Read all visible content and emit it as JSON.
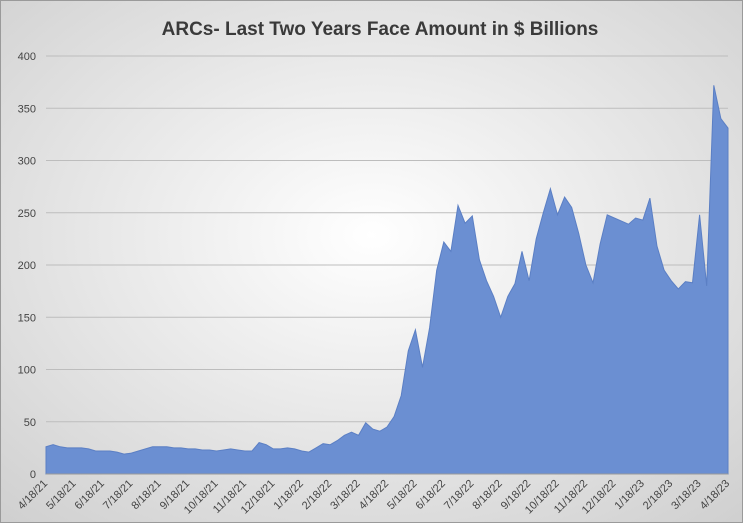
{
  "chart_data": {
    "type": "area",
    "title": "ARCs- Last Two Years Face Amount in $ Billions",
    "categories": [
      "4/18/21",
      null,
      null,
      null,
      "5/18/21",
      null,
      null,
      null,
      "6/18/21",
      null,
      null,
      null,
      "7/18/21",
      null,
      null,
      null,
      "8/18/21",
      null,
      null,
      null,
      "9/18/21",
      null,
      null,
      null,
      "10/18/21",
      null,
      null,
      null,
      "11/18/21",
      null,
      null,
      null,
      "12/18/21",
      null,
      null,
      null,
      "1/18/22",
      null,
      null,
      null,
      "2/18/22",
      null,
      null,
      null,
      "3/18/22",
      null,
      null,
      null,
      "4/18/22",
      null,
      null,
      null,
      "5/18/22",
      null,
      null,
      null,
      "6/18/22",
      null,
      null,
      null,
      "7/18/22",
      null,
      null,
      null,
      "8/18/22",
      null,
      null,
      null,
      "9/18/22",
      null,
      null,
      null,
      "10/18/22",
      null,
      null,
      null,
      "11/18/22",
      null,
      null,
      null,
      "12/18/22",
      null,
      null,
      null,
      "1/18/23",
      null,
      null,
      null,
      "2/18/23",
      null,
      null,
      null,
      "3/18/23",
      null,
      null,
      null,
      "4/18/23"
    ],
    "values": [
      26,
      28,
      26,
      25,
      25,
      25,
      24,
      22,
      22,
      22,
      21,
      19,
      20,
      22,
      24,
      26,
      26,
      26,
      25,
      25,
      24,
      24,
      23,
      23,
      22,
      23,
      24,
      23,
      22,
      22,
      30,
      28,
      24,
      24,
      25,
      24,
      22,
      21,
      25,
      29,
      28,
      32,
      37,
      40,
      37,
      49,
      43,
      41,
      45,
      55,
      75,
      118,
      138,
      102,
      140,
      195,
      222,
      213,
      257,
      240,
      247,
      205,
      185,
      170,
      150,
      170,
      182,
      213,
      185,
      225,
      250,
      273,
      248,
      265,
      255,
      230,
      200,
      183,
      220,
      248,
      245,
      242,
      239,
      245,
      243,
      264,
      218,
      195,
      185,
      177,
      184,
      183,
      248,
      180,
      372,
      340,
      331
    ],
    "color": "#6b8fd2",
    "ylim": [
      0,
      400
    ],
    "yticks": [
      0,
      50,
      100,
      150,
      200,
      250,
      300,
      350,
      400
    ],
    "grid": true
  }
}
